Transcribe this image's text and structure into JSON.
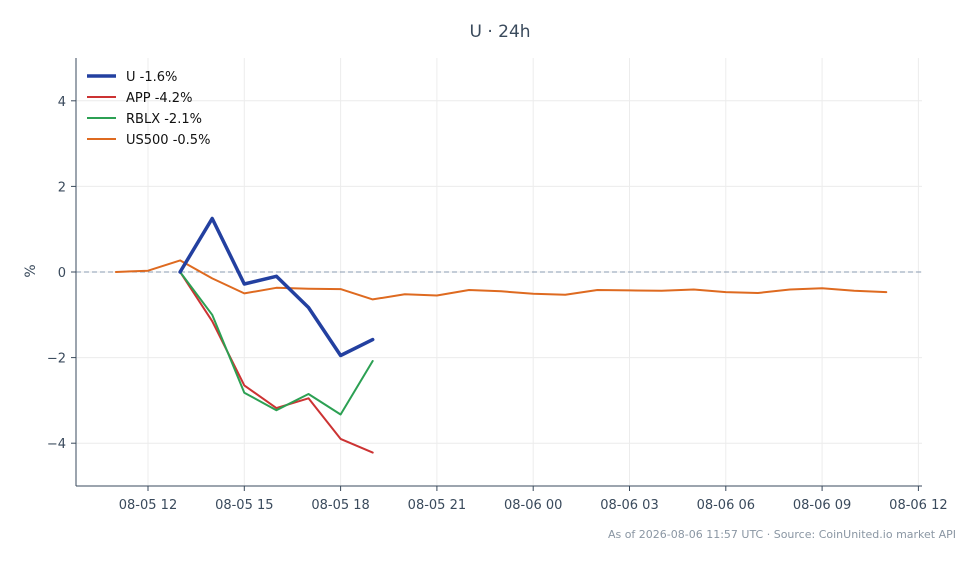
{
  "chart_data": {
    "type": "line",
    "title": "U · 24h",
    "xlabel": "",
    "ylabel": "%",
    "x_ticks": [
      "08-05 12",
      "08-05 15",
      "08-05 18",
      "08-05 21",
      "08-06 00",
      "08-06 03",
      "08-06 06",
      "08-06 09",
      "08-06 12"
    ],
    "ylim": [
      -5,
      5
    ],
    "y_ticks": [
      4,
      2,
      0,
      -2,
      -4
    ],
    "y_tick_labels": [
      "4",
      "2",
      "0",
      "−2",
      "−4"
    ],
    "grid": true,
    "reference_line": 0,
    "legend_position": "top-left",
    "series": [
      {
        "name": "U -1.6%",
        "color": "#2340a0",
        "x": [
          "08-05 13:00",
          "08-05 14:00",
          "08-05 15:00",
          "08-05 16:00",
          "08-05 17:00",
          "08-05 18:00",
          "08-05 19:00"
        ],
        "values": [
          0.0,
          1.25,
          -0.28,
          -0.1,
          -0.83,
          -1.95,
          -1.58
        ]
      },
      {
        "name": "APP -4.2%",
        "color": "#cc3333",
        "x": [
          "08-05 13:00",
          "08-05 14:00",
          "08-05 15:00",
          "08-05 16:00",
          "08-05 17:00",
          "08-05 18:00",
          "08-05 19:00"
        ],
        "values": [
          0.0,
          -1.15,
          -2.65,
          -3.18,
          -2.95,
          -3.9,
          -4.22
        ]
      },
      {
        "name": "RBLX -2.1%",
        "color": "#2ca053",
        "x": [
          "08-05 13:00",
          "08-05 14:00",
          "08-05 15:00",
          "08-05 16:00",
          "08-05 17:00",
          "08-05 18:00",
          "08-05 19:00"
        ],
        "values": [
          0.0,
          -1.0,
          -2.82,
          -3.23,
          -2.85,
          -3.33,
          -2.08
        ]
      },
      {
        "name": "US500 -0.5%",
        "color": "#de6a20",
        "x": [
          "08-05 11:00",
          "08-05 12:00",
          "08-05 13:00",
          "08-05 14:00",
          "08-05 15:00",
          "08-05 16:00",
          "08-05 17:00",
          "08-05 18:00",
          "08-05 19:00",
          "08-05 20:00",
          "08-05 21:00",
          "08-05 22:00",
          "08-05 23:00",
          "08-06 00:00",
          "08-06 01:00",
          "08-06 02:00",
          "08-06 03:00",
          "08-06 04:00",
          "08-06 05:00",
          "08-06 06:00",
          "08-06 07:00",
          "08-06 08:00",
          "08-06 09:00",
          "08-06 10:00",
          "08-06 11:00"
        ],
        "values": [
          0.0,
          0.03,
          0.27,
          -0.15,
          -0.5,
          -0.37,
          -0.39,
          -0.4,
          -0.64,
          -0.52,
          -0.55,
          -0.42,
          -0.45,
          -0.51,
          -0.53,
          -0.42,
          -0.43,
          -0.44,
          -0.41,
          -0.47,
          -0.49,
          -0.41,
          -0.38,
          -0.44,
          -0.47
        ]
      }
    ]
  },
  "footer": "As of 2026-08-06 11:57 UTC · Source: CoinUnited.io market API"
}
